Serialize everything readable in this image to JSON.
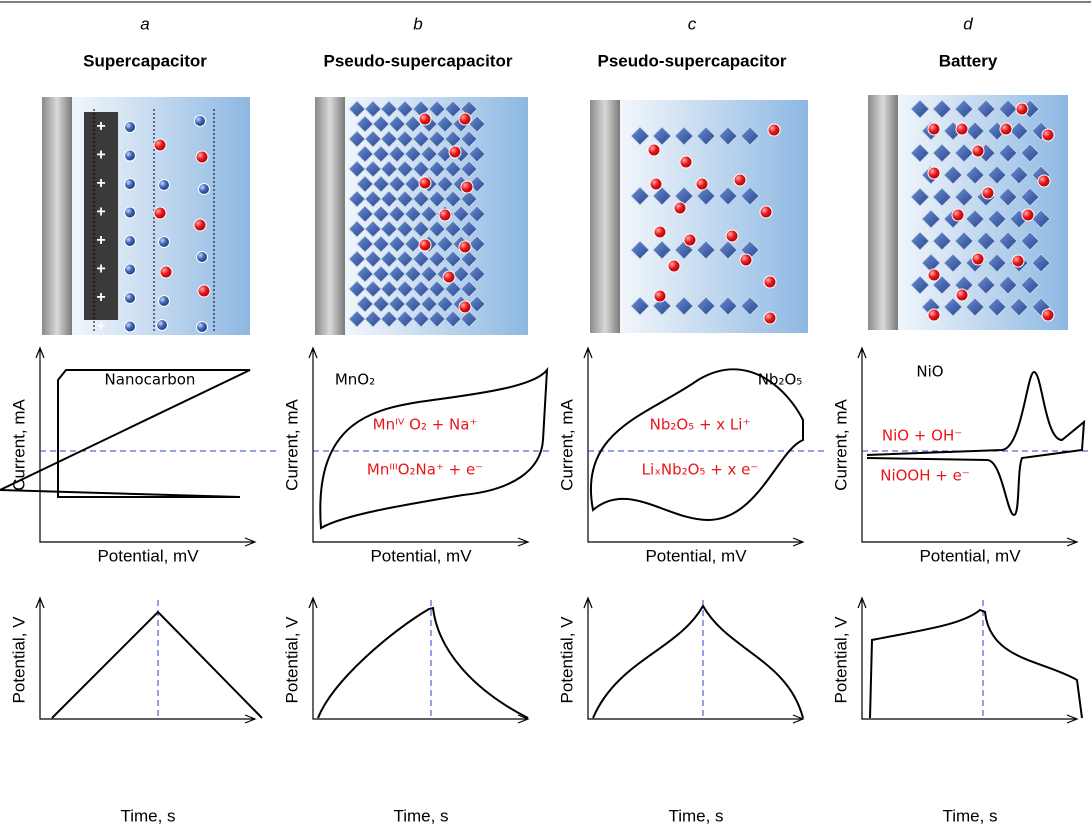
{
  "panels": [
    {
      "letter": "a",
      "title": "Supercapacitor",
      "cv": {
        "x_label": "Potential, mV",
        "y_label": "Current, mA",
        "annotations": [
          {
            "text": "Nanocarbon",
            "color": "#000000"
          }
        ]
      },
      "gcd": {
        "x_label": "Time, s",
        "y_label": "Potential, V"
      }
    },
    {
      "letter": "b",
      "title": "Pseudo-supercapacitor",
      "cv": {
        "x_label": "Potential, mV",
        "y_label": "Current, mA",
        "annotations": [
          {
            "text": "MnO₂",
            "color": "#000000"
          },
          {
            "text": "Mnᴵⱽ O₂ + Na⁺",
            "color": "#e8161b"
          },
          {
            "text": "MnᴵᴵᴵO₂Na⁺ + e⁻",
            "color": "#e8161b"
          }
        ]
      },
      "gcd": {
        "x_label": "Time, s",
        "y_label": "Potential, V"
      }
    },
    {
      "letter": "c",
      "title": "Pseudo-supercapacitor",
      "cv": {
        "x_label": "Potential, mV",
        "y_label": "Current, mA",
        "annotations": [
          {
            "text": "Nb₂O₅",
            "color": "#000000"
          },
          {
            "text": "Nb₂O₅ + x Li⁺",
            "color": "#e8161b"
          },
          {
            "text": "LiₓNb₂O₅ + x e⁻",
            "color": "#e8161b"
          }
        ]
      },
      "gcd": {
        "x_label": "Time, s",
        "y_label": "Potential, V"
      }
    },
    {
      "letter": "d",
      "title": "Battery",
      "cv": {
        "x_label": "Potential, mV",
        "y_label": "Current, mA",
        "annotations": [
          {
            "text": "NiO",
            "color": "#000000"
          },
          {
            "text": "NiO + OH⁻",
            "color": "#e8161b"
          },
          {
            "text": "NiOOH + e⁻",
            "color": "#e8161b"
          }
        ]
      },
      "gcd": {
        "x_label": "Time, s",
        "y_label": "Potential, V"
      }
    }
  ]
}
